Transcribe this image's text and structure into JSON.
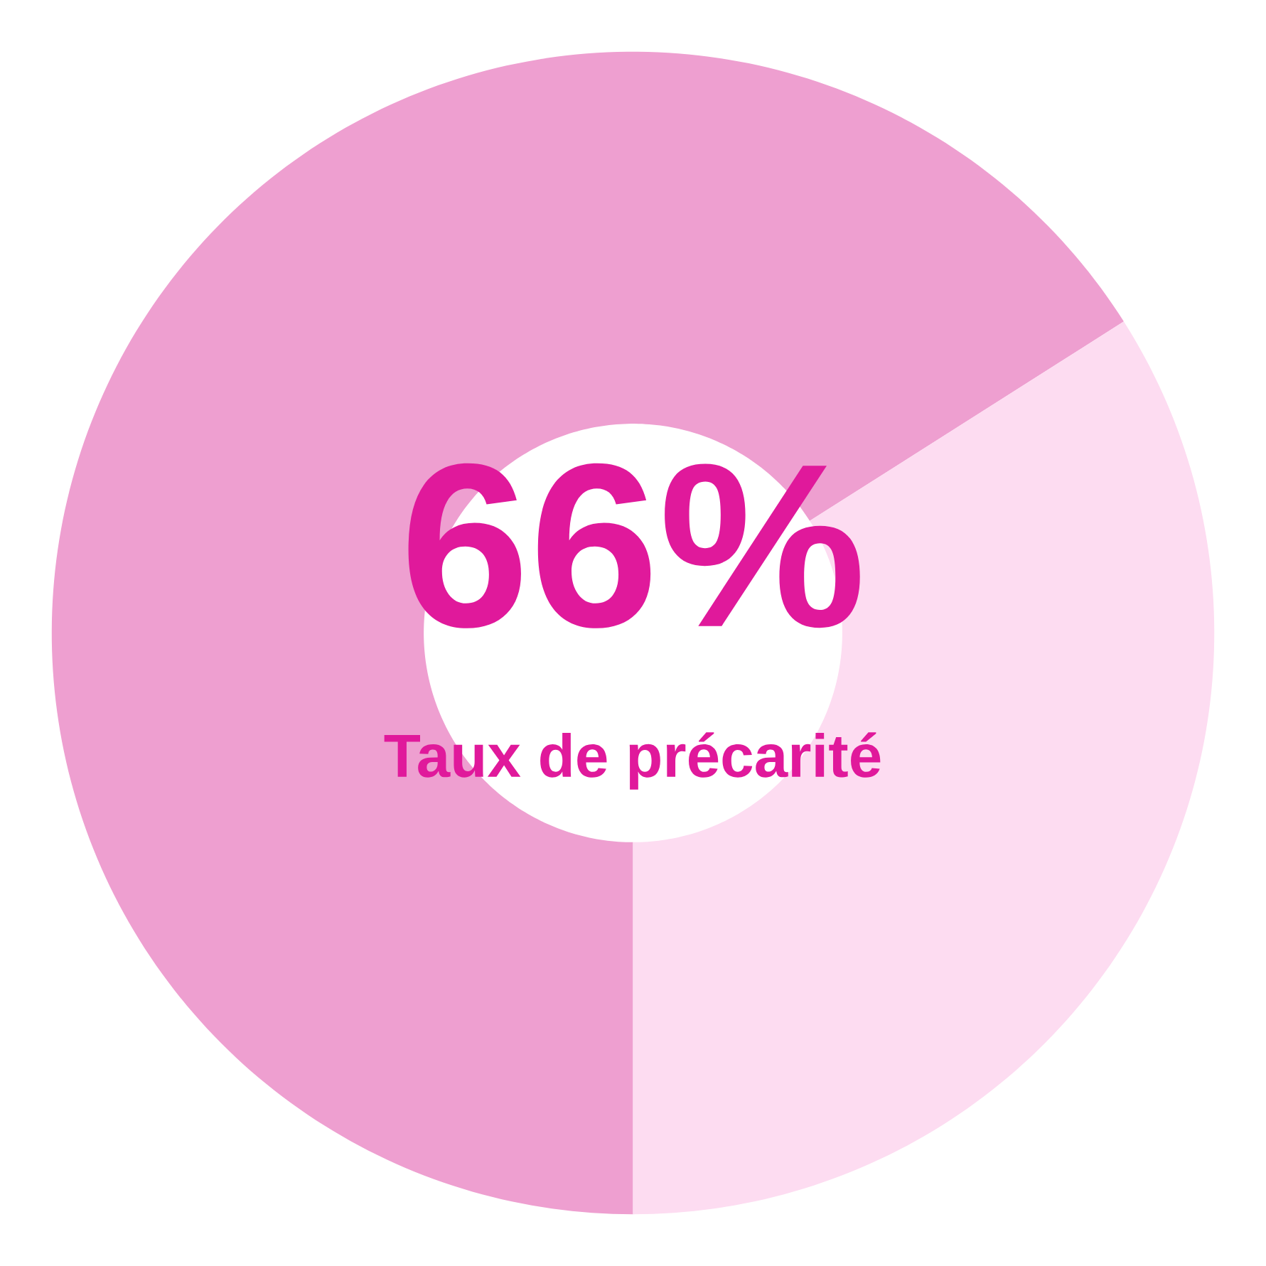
{
  "chart_data": {
    "type": "donut",
    "categories": [
      null,
      null
    ],
    "values": [
      66,
      34
    ],
    "colors": [
      "#ee9fd0",
      "#fddcf1"
    ],
    "annotations": [
      "66%",
      "Taux de précarité"
    ]
  }
}
